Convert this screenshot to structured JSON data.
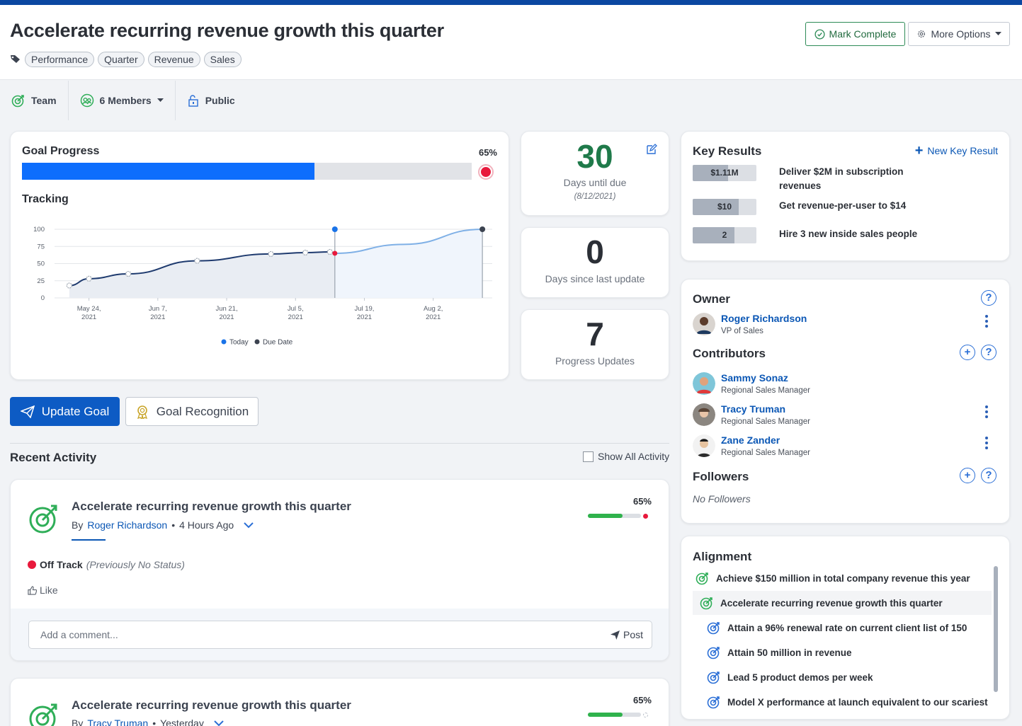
{
  "header": {
    "title": "Accelerate recurring revenue growth this quarter",
    "tags": [
      "Performance",
      "Quarter",
      "Revenue",
      "Sales"
    ],
    "mark_complete": "Mark Complete",
    "more_options": "More Options"
  },
  "subbar": {
    "team": "Team",
    "members": "6 Members",
    "public": "Public"
  },
  "progress": {
    "label": "Goal Progress",
    "percent_text": "65%",
    "percent": 0.65,
    "status_color": "#e8193c",
    "tracking_label": "Tracking"
  },
  "chart_data": {
    "type": "line",
    "title": "",
    "xlabel": "",
    "ylabel": "",
    "ylim": [
      0,
      100
    ],
    "y_ticks": [
      "100",
      "75",
      "50",
      "25",
      "0"
    ],
    "x_ticks": [
      [
        "May 24,",
        "2021"
      ],
      [
        "Jun 7,",
        "2021"
      ],
      [
        "Jun 21,",
        "2021"
      ],
      [
        "Jul 5,",
        "2021"
      ],
      [
        "Jul 19,",
        "2021"
      ],
      [
        "Aug 2,",
        "2021"
      ]
    ],
    "series": [
      {
        "name": "actual",
        "x": [
          "2021-05-20",
          "2021-05-24",
          "2021-06-01",
          "2021-06-15",
          "2021-06-30",
          "2021-07-07",
          "2021-07-12",
          "2021-07-13"
        ],
        "y": [
          18,
          28,
          35,
          54,
          64,
          66,
          67,
          65
        ]
      },
      {
        "name": "projected",
        "x": [
          "2021-07-13",
          "2021-07-27",
          "2021-08-12"
        ],
        "y": [
          65,
          78,
          100
        ]
      }
    ],
    "markers": {
      "today": {
        "x": "2021-07-13",
        "y": 100
      },
      "due_date": {
        "x": "2021-08-12",
        "y": 100
      }
    },
    "legend": [
      "Today",
      "Due Date"
    ],
    "legend_colors": [
      "#1a73e8",
      "#3c4350"
    ],
    "legend_position": "bottom"
  },
  "stats": {
    "days_until_due": "30",
    "days_until_due_label": "Days until due",
    "due_date": "(8/12/2021)",
    "days_since_update": "0",
    "days_since_update_label": "Days since last update",
    "progress_updates": "7",
    "progress_updates_label": "Progress Updates"
  },
  "actions": {
    "update_goal": "Update Goal",
    "goal_recognition": "Goal Recognition"
  },
  "activity": {
    "heading": "Recent Activity",
    "show_all": "Show All Activity",
    "items": [
      {
        "title": "Accelerate recurring revenue growth this quarter",
        "by": "By",
        "author": "Roger Richardson",
        "time": "4 Hours Ago",
        "percent_text": "65%",
        "percent": 0.65,
        "status": "Off Track",
        "previous": "(Previously No Status)",
        "like": "Like",
        "comment_placeholder": "Add a comment...",
        "post": "Post"
      },
      {
        "title": "Accelerate recurring revenue growth this quarter",
        "by": "By",
        "author": "Tracy Truman",
        "time": "Yesterday",
        "percent_text": "65%",
        "percent": 0.65
      }
    ]
  },
  "key_results": {
    "heading": "Key Results",
    "new_label": "New Key Result",
    "items": [
      {
        "value": "$1.11M",
        "fraction": 0.55,
        "text": "Deliver $2M in subscription revenues"
      },
      {
        "value": "$10",
        "fraction": 0.72,
        "text": "Get revenue-per-user to $14"
      },
      {
        "value": "2",
        "fraction": 0.66,
        "text": "Hire 3 new inside sales people"
      }
    ]
  },
  "people": {
    "owner_heading": "Owner",
    "owner": {
      "name": "Roger Richardson",
      "role": "VP of Sales"
    },
    "contributors_heading": "Contributors",
    "contributors": [
      {
        "name": "Sammy Sonaz",
        "role": "Regional Sales Manager"
      },
      {
        "name": "Tracy Truman",
        "role": "Regional Sales Manager"
      },
      {
        "name": "Zane Zander",
        "role": "Regional Sales Manager"
      }
    ],
    "followers_heading": "Followers",
    "no_followers": "No Followers"
  },
  "alignment": {
    "heading": "Alignment",
    "items": [
      "Achieve $150 million in total company revenue this year",
      "Accelerate recurring revenue growth this quarter",
      "Attain a 96% renewal rate on current client list of 150",
      "Attain 50 million in revenue",
      "Lead 5 product demos per week",
      "Model X performance at launch equivalent to our scariest"
    ]
  }
}
